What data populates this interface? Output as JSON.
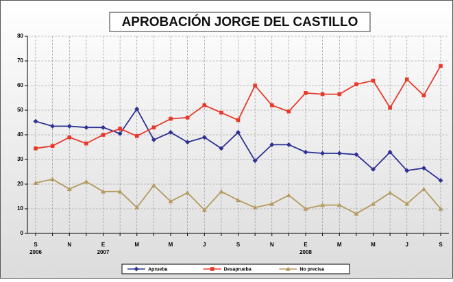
{
  "chart_data": {
    "type": "line",
    "title": "APROBACIÓN JORGE DEL CASTILLO",
    "categories": [
      "S",
      null,
      "N",
      null,
      "E",
      null,
      "M",
      null,
      "M",
      null,
      "J",
      null,
      "S",
      null,
      "N",
      null,
      "E",
      null,
      "M",
      null,
      "M",
      null,
      "J",
      null,
      "S"
    ],
    "x_sublabels": [
      "2006",
      null,
      null,
      null,
      "2007",
      null,
      null,
      null,
      null,
      null,
      null,
      null,
      null,
      null,
      null,
      null,
      "2008",
      null,
      null,
      null,
      null,
      null,
      null,
      null,
      null
    ],
    "series": [
      {
        "name": "Aprueba",
        "color": "#2e3192",
        "marker": "diamond",
        "values": [
          45.5,
          43.5,
          43.5,
          43,
          43,
          40.5,
          50.5,
          38,
          41,
          37,
          39,
          34.5,
          41,
          29.5,
          36,
          36,
          33,
          32.5,
          32.5,
          32,
          26,
          33,
          25.5,
          26.5,
          21.5
        ]
      },
      {
        "name": "Desaprueba",
        "color": "#e8392b",
        "marker": "square",
        "values": [
          34.5,
          35.5,
          39,
          36.5,
          40,
          42.5,
          39.5,
          43,
          46.5,
          47,
          52,
          49,
          46,
          60,
          52,
          49.5,
          57,
          56.5,
          56.5,
          60.5,
          62,
          51,
          62.5,
          56,
          68
        ]
      },
      {
        "name": "No precisa",
        "color": "#b49a5e",
        "marker": "triangle",
        "values": [
          20.5,
          22,
          18,
          21,
          17,
          17,
          10.5,
          19.5,
          13,
          16.5,
          9.5,
          17,
          13.5,
          10.5,
          12,
          15.5,
          10,
          11.5,
          11.5,
          8,
          12,
          16.5,
          12,
          18,
          10
        ]
      }
    ],
    "ylim": [
      0,
      80
    ],
    "yticks": [
      0,
      10,
      20,
      30,
      40,
      50,
      60,
      70,
      80
    ],
    "grid": true,
    "legend": "bottom"
  }
}
